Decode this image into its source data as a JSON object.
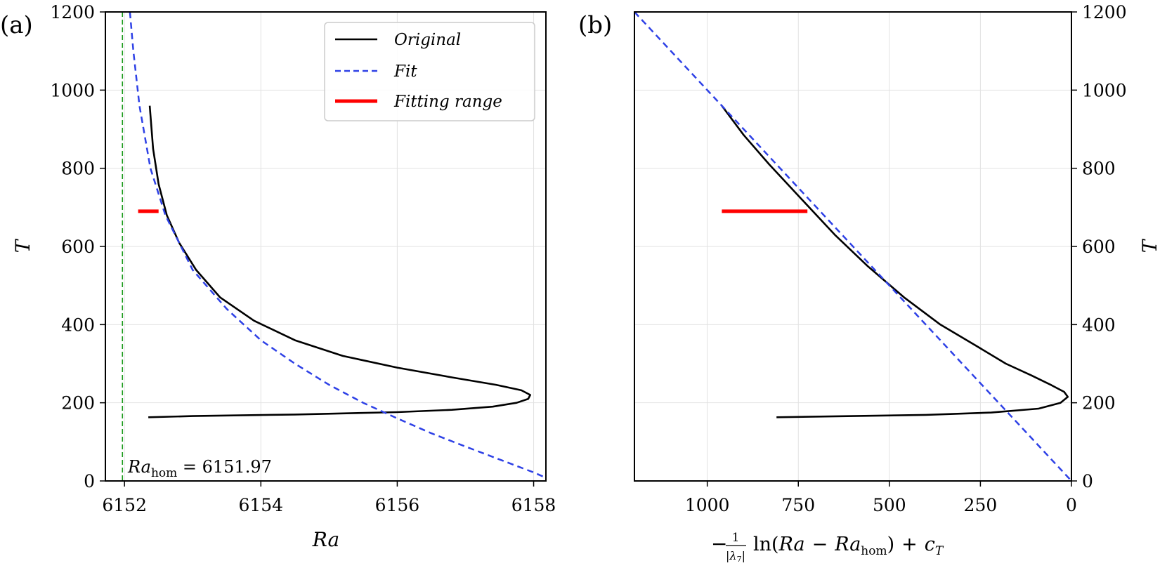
{
  "chart_data": [
    {
      "panel": "(a)",
      "type": "line",
      "xlabel": "Ra",
      "ylabel": "T",
      "xlim": [
        6151.72,
        6158.18
      ],
      "ylim": [
        0,
        1200
      ],
      "xticks": [
        6152,
        6154,
        6156,
        6158
      ],
      "yticks": [
        0,
        200,
        400,
        600,
        800,
        1000,
        1200
      ],
      "grid": true,
      "legend_position": "top-right",
      "legend": [
        "Original",
        "Fit",
        "Fitting range"
      ],
      "annotation": {
        "label": "Ra_hom = 6151.97",
        "prefix": "Ra",
        "subscript": "hom",
        "value_text": " = 6151.97"
      },
      "vertical_line": {
        "x": 6151.97,
        "color": "#1a9a1a",
        "style": "dashed"
      },
      "series": [
        {
          "name": "Original",
          "color": "#000000",
          "style": "solid",
          "points": [
            [
              6152.35,
              163
            ],
            [
              6153.0,
              166
            ],
            [
              6154.5,
              170
            ],
            [
              6156.0,
              176
            ],
            [
              6156.8,
              182
            ],
            [
              6157.4,
              190
            ],
            [
              6157.75,
              200
            ],
            [
              6157.92,
              210
            ],
            [
              6157.95,
              220
            ],
            [
              6157.82,
              232
            ],
            [
              6157.45,
              246
            ],
            [
              6156.8,
              265
            ],
            [
              6156.0,
              290
            ],
            [
              6155.2,
              320
            ],
            [
              6154.5,
              360
            ],
            [
              6153.9,
              410
            ],
            [
              6153.4,
              470
            ],
            [
              6153.05,
              540
            ],
            [
              6152.8,
              610
            ],
            [
              6152.62,
              680
            ],
            [
              6152.5,
              760
            ],
            [
              6152.42,
              850
            ],
            [
              6152.37,
              960
            ]
          ]
        },
        {
          "name": "Fit",
          "color": "#2e41e6",
          "style": "dashed",
          "points": [
            [
              6152.08,
              1200
            ],
            [
              6152.13,
              1100
            ],
            [
              6152.22,
              960
            ],
            [
              6152.38,
              800
            ],
            [
              6152.6,
              680
            ],
            [
              6153.0,
              540
            ],
            [
              6153.5,
              440
            ],
            [
              6154.0,
              360
            ],
            [
              6154.5,
              300
            ],
            [
              6155.0,
              246
            ],
            [
              6155.5,
              200
            ],
            [
              6156.0,
              160
            ],
            [
              6156.5,
              122
            ],
            [
              6157.0,
              88
            ],
            [
              6157.5,
              55
            ],
            [
              6158.0,
              22
            ],
            [
              6158.18,
              8
            ]
          ]
        },
        {
          "name": "Fitting range",
          "color": "#ff0000",
          "style": "thick",
          "points": [
            [
              6152.2,
              690
            ],
            [
              6152.5,
              690
            ]
          ]
        }
      ]
    },
    {
      "panel": "(b)",
      "type": "line",
      "xlabel": "−1/|λ7| ln(Ra − Ra_hom) + c_T",
      "xlabel_parts": {
        "minus": "−",
        "numerator": "1",
        "lambda": "λ",
        "lambda_sub": "7",
        "ln": "ln",
        "open": "(",
        "ra": "Ra",
        "minus2": "−",
        "ra2": "Ra",
        "hom": "hom",
        "close": ")",
        "plus": "+",
        "c": "c",
        "c_sub": "T"
      },
      "ylabel": "T",
      "xlim": [
        1200,
        0
      ],
      "ylim": [
        0,
        1200
      ],
      "xticks": [
        1000,
        750,
        500,
        250,
        0
      ],
      "yticks": [
        0,
        200,
        400,
        600,
        800,
        1000,
        1200
      ],
      "grid": true,
      "y_axis_side": "right",
      "series": [
        {
          "name": "Original",
          "color": "#000000",
          "style": "solid",
          "points": [
            [
              810,
              163
            ],
            [
              600,
              166
            ],
            [
              400,
              169
            ],
            [
              220,
              175
            ],
            [
              90,
              185
            ],
            [
              30,
              200
            ],
            [
              10,
              215
            ],
            [
              20,
              228
            ],
            [
              55,
              245
            ],
            [
              110,
              270
            ],
            [
              180,
              300
            ],
            [
              260,
              345
            ],
            [
              360,
              400
            ],
            [
              460,
              470
            ],
            [
              560,
              550
            ],
            [
              650,
              630
            ],
            [
              740,
              720
            ],
            [
              830,
              810
            ],
            [
              900,
              885
            ],
            [
              960,
              960
            ]
          ]
        },
        {
          "name": "Fit",
          "color": "#2e41e6",
          "style": "dashed",
          "points": [
            [
              1200,
              1200
            ],
            [
              0,
              0
            ]
          ]
        },
        {
          "name": "Fitting range",
          "color": "#ff0000",
          "style": "thick",
          "points": [
            [
              960,
              690
            ],
            [
              725,
              690
            ]
          ]
        }
      ]
    }
  ]
}
